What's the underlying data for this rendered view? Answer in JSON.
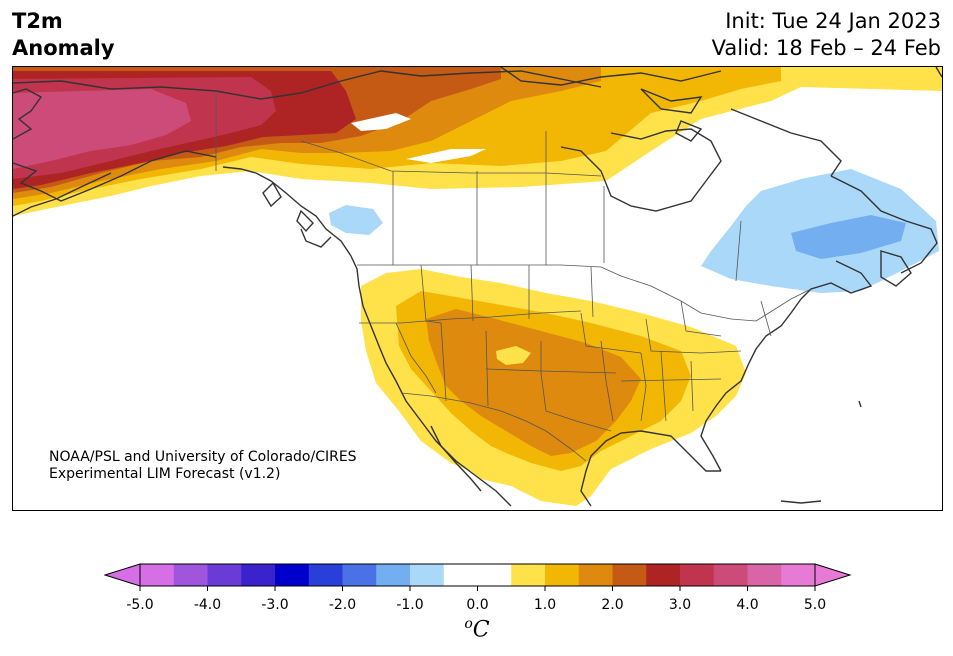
{
  "title": {
    "left_line1": "T2m",
    "left_line2": "Anomaly",
    "init": "Init: Tue 24 Jan 2023",
    "valid": "Valid: 18 Feb – 24 Feb"
  },
  "credit": {
    "line1": "NOAA/PSL and University of Colorado/CIRES",
    "line2": "Experimental LIM Forecast (v1.2)"
  },
  "colorbar": {
    "ticks": [
      "-5.0",
      "-4.0",
      "-3.0",
      "-2.0",
      "-1.0",
      "0.0",
      "1.0",
      "2.0",
      "3.0",
      "4.0",
      "5.0"
    ],
    "unit_symbol": "o",
    "unit_letter": "C",
    "min": -5.0,
    "max": 5.0,
    "step": 0.5,
    "colors": [
      "#d66ee6",
      "#a055dd",
      "#6b3bd8",
      "#3a22cc",
      "#0000cc",
      "#2a3fd9",
      "#4a72e6",
      "#72aef0",
      "#aad8f8",
      "#ffffff",
      "#ffffff",
      "#ffe14a",
      "#f2b705",
      "#de8a0e",
      "#c45a13",
      "#ae2323",
      "#c0354d",
      "#cd4b78",
      "#d964a8",
      "#e77ad5"
    ],
    "extend_low_color": "#d66ee6",
    "extend_high_color": "#e77ad5"
  },
  "colors": {
    "light_yellow": "#ffe14a",
    "yellow_orange": "#f2b705",
    "orange": "#de8a0e",
    "dark_orange": "#c45a13",
    "red": "#ae2323",
    "crimson": "#c0354d",
    "rose": "#cd4b78",
    "light_blue": "#aad8f8",
    "blue": "#72aef0",
    "coastline": "#333333"
  }
}
